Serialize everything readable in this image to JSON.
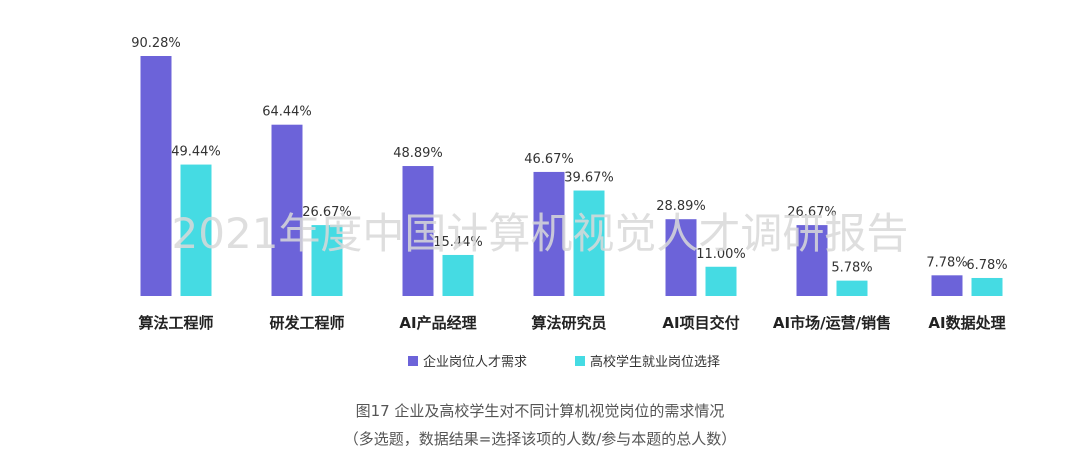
{
  "watermark": "2021年度中国计算机视觉人才调研报告",
  "caption": {
    "line1": "图17 企业及高校学生对不同计算机视觉岗位的需求情况",
    "line2": "（多选题，数据结果=选择该项的人数/参与本题的总人数）"
  },
  "colors": {
    "enterprise": "#6c63d9",
    "students": "#45dbe3"
  },
  "chart_data": {
    "type": "bar",
    "categories": [
      "算法工程师",
      "研发工程师",
      "AI产品经理",
      "算法研究员",
      "AI项目交付",
      "AI市场/运营/销售",
      "AI数据处理"
    ],
    "series": [
      {
        "name": "企业岗位人才需求",
        "values": [
          90.28,
          64.44,
          48.89,
          46.67,
          28.89,
          26.67,
          7.78
        ],
        "labels": [
          "90.28%",
          "64.44%",
          "48.89%",
          "46.67%",
          "28.89%",
          "26.67%",
          "7.78%"
        ]
      },
      {
        "name": "高校学生就业岗位选择",
        "values": [
          49.44,
          26.67,
          15.44,
          39.67,
          11.0,
          5.78,
          6.78
        ],
        "labels": [
          "49.44%",
          "26.67%",
          "15.44%",
          "39.67%",
          "11.00%",
          "5.78%",
          "6.78%"
        ]
      }
    ],
    "ylim": [
      0,
      90.28
    ],
    "grid": false,
    "legend_position": "bottom"
  }
}
